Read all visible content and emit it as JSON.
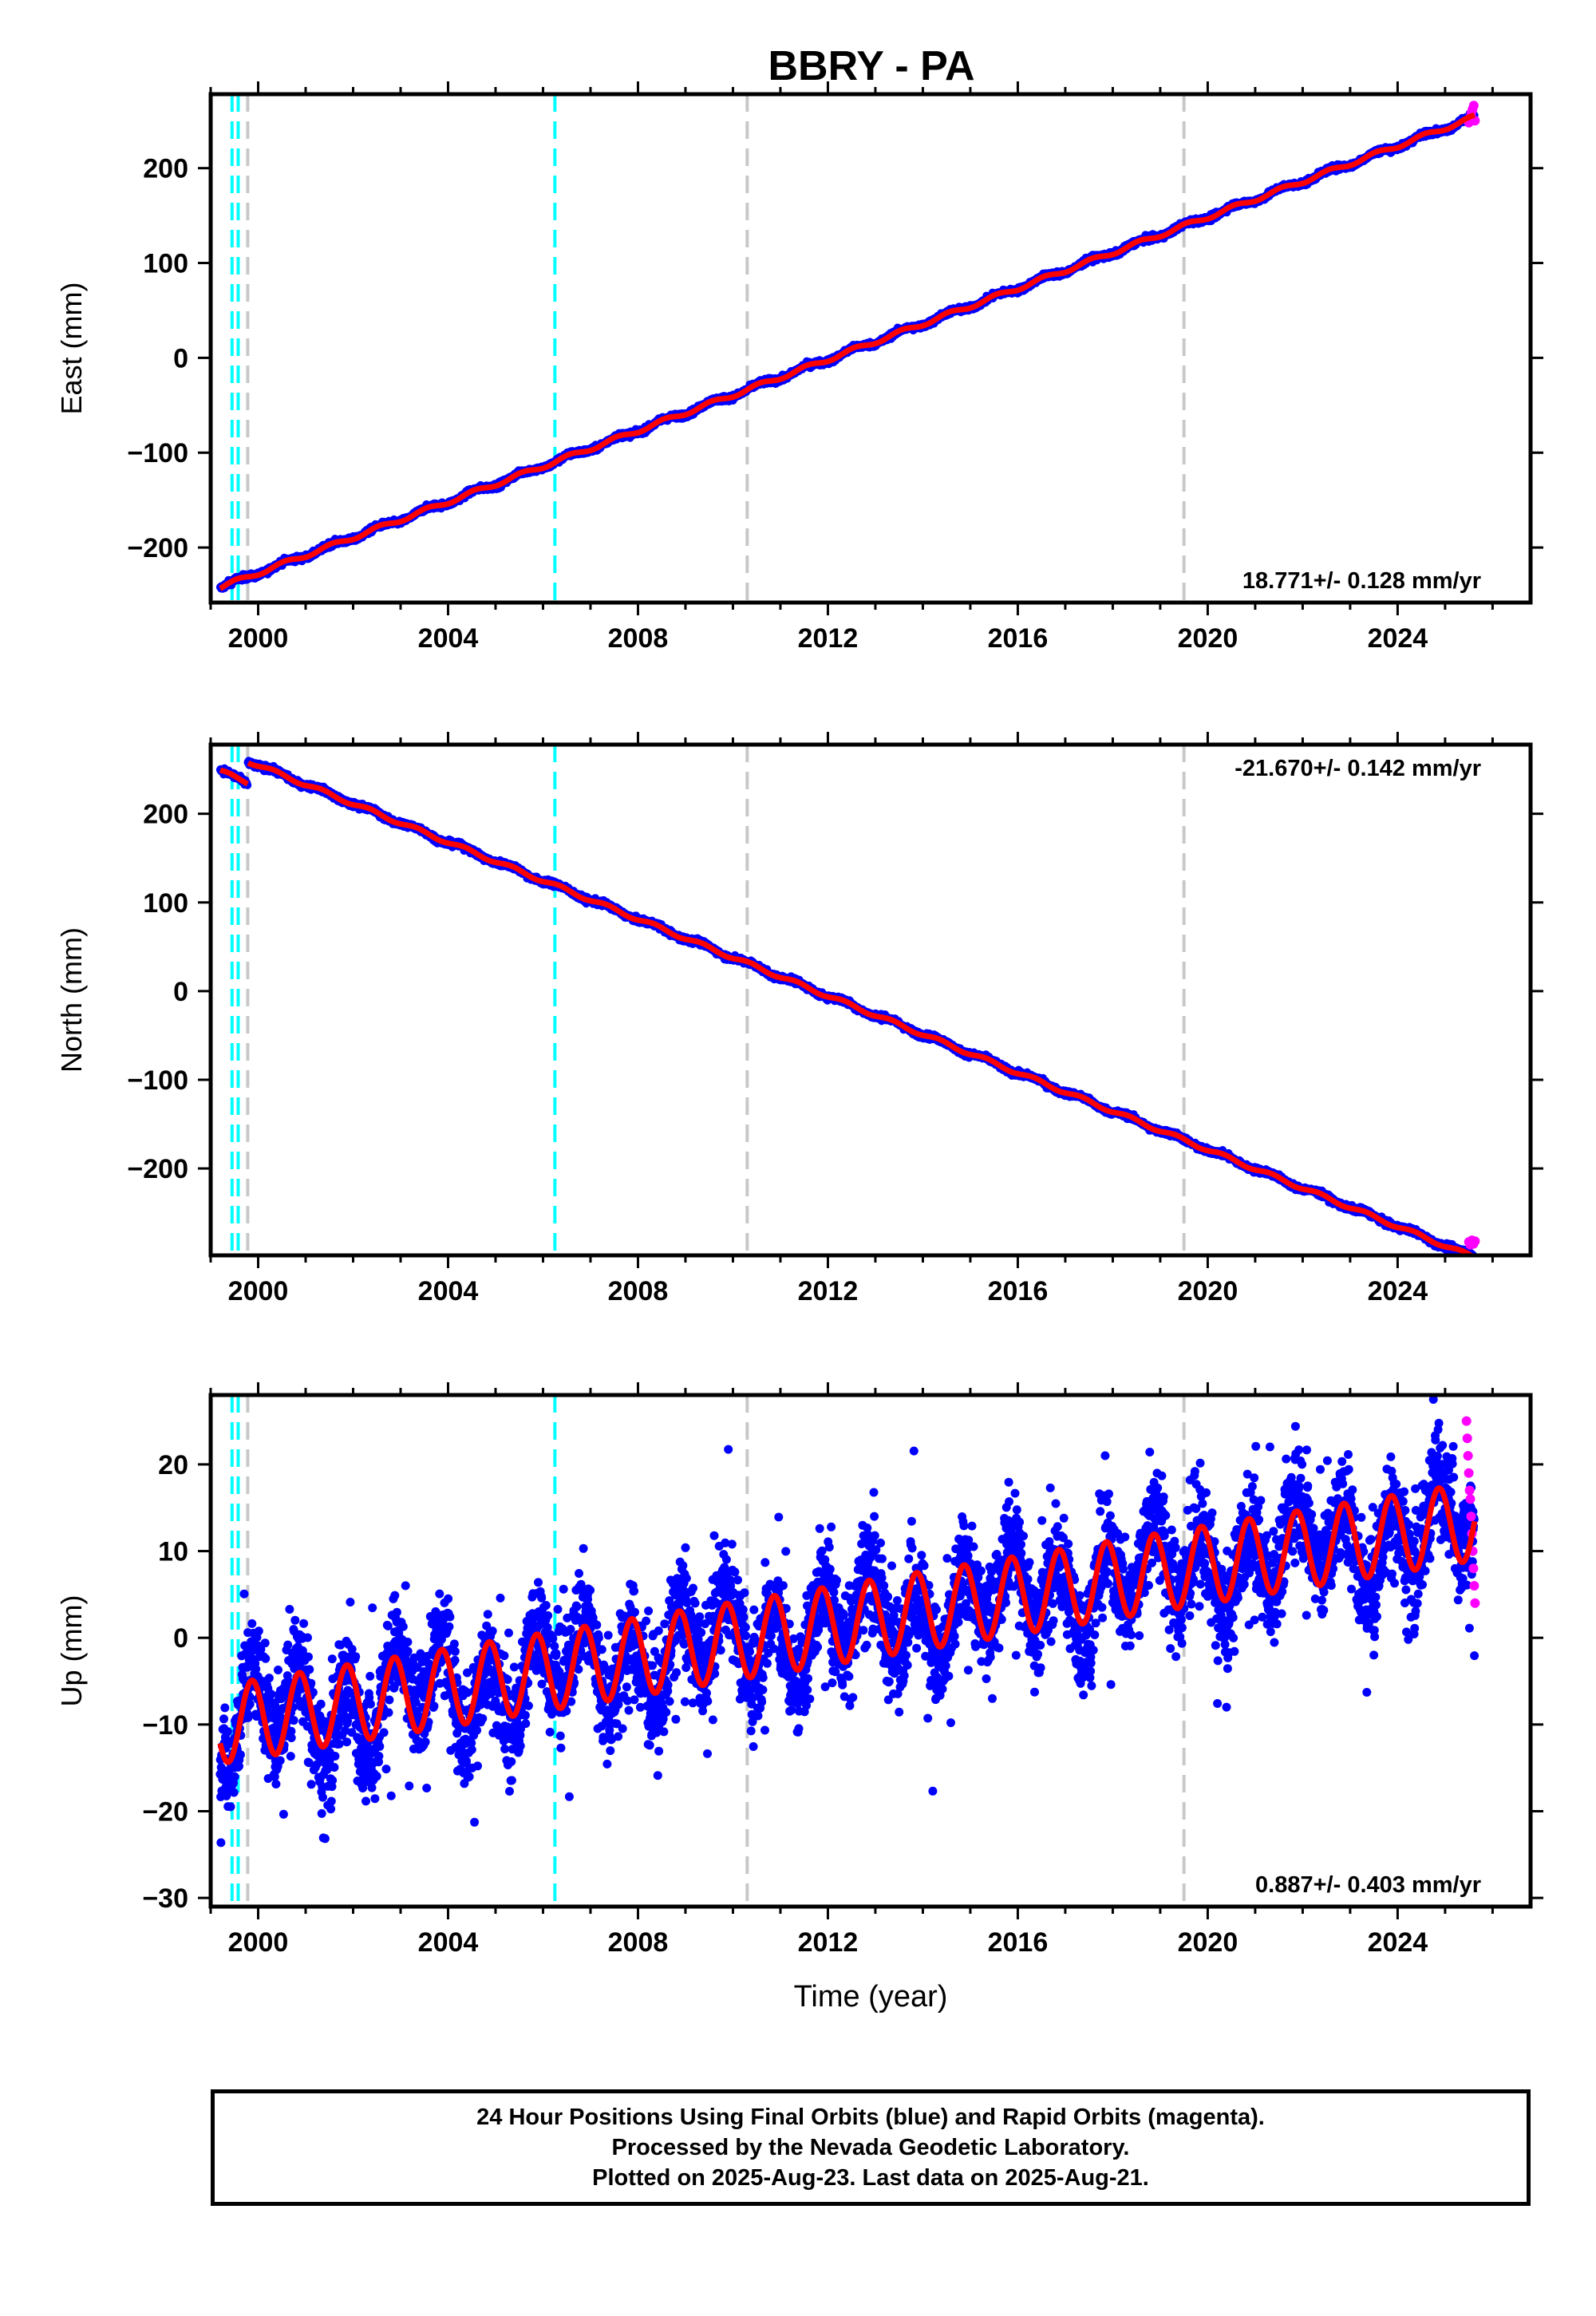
{
  "title": "BBRY - PA",
  "footer": {
    "line1": "24 Hour Positions Using Final Orbits (blue) and Rapid Orbits (magenta).",
    "line2": "Processed by the Nevada Geodetic Laboratory.",
    "line3": "Plotted on 2025-Aug-23. Last data on 2025-Aug-21."
  },
  "colors": {
    "final_orbits": "#0000ff",
    "rapid_orbits": "#ff00ff",
    "model_fit": "#ff0000",
    "equipment_change": "#00ffff",
    "earthquake": "#c8c8c8"
  },
  "chart_data": [
    {
      "type": "scatter",
      "component": "east",
      "ylabel": "East (mm)",
      "xlabel": "",
      "xlim": [
        1999.0,
        2026.8
      ],
      "ylim": [
        -258,
        278
      ],
      "xticks": [
        2000,
        2004,
        2008,
        2012,
        2016,
        2020,
        2024
      ],
      "xtick_labels": [
        "2000",
        "2004",
        "2008",
        "2012",
        "2016",
        "2020",
        "2024"
      ],
      "yticks": [
        -200,
        -100,
        0,
        100,
        200
      ],
      "ytick_labels": [
        "−200",
        "−100",
        "0",
        "100",
        "200"
      ],
      "rate_label": "18.771+/- 0.128 mm/yr",
      "rate_position": "bottom-right",
      "cyan_lines": [
        1999.45,
        1999.58,
        2006.25
      ],
      "gray_lines": [
        1999.78,
        2010.3,
        2019.5
      ],
      "model": {
        "start": 1999.2,
        "end": 2025.62,
        "y0": -242,
        "rate": 18.771,
        "annual_amp": 2.2,
        "phase": 0.3,
        "offsets": [],
        "noise": 2.2
      },
      "rapid": {
        "start": 2025.5,
        "end": 2025.63,
        "y": [
          248,
          253,
          258,
          262,
          266,
          250
        ]
      },
      "grid": false
    },
    {
      "type": "scatter",
      "component": "north",
      "ylabel": "North (mm)",
      "xlabel": "",
      "xlim": [
        1999.0,
        2026.8
      ],
      "ylim": [
        -298,
        278
      ],
      "xticks": [
        2000,
        2004,
        2008,
        2012,
        2016,
        2020,
        2024
      ],
      "xtick_labels": [
        "2000",
        "2004",
        "2008",
        "2012",
        "2016",
        "2020",
        "2024"
      ],
      "yticks": [
        -200,
        -100,
        0,
        100,
        200
      ],
      "ytick_labels": [
        "−200",
        "−100",
        "0",
        "100",
        "200"
      ],
      "rate_label": "-21.670+/- 0.142 mm/yr",
      "rate_position": "top-right",
      "cyan_lines": [
        1999.45,
        1999.58,
        2006.25
      ],
      "gray_lines": [
        1999.78,
        2010.3,
        2019.5
      ],
      "model": {
        "start": 1999.2,
        "end": 2025.62,
        "y0": 248,
        "rate": -21.67,
        "annual_amp": 2.0,
        "phase": 0.1,
        "offsets": [
          {
            "at": 1999.78,
            "dy": 24
          }
        ],
        "noise": 2.4
      },
      "rapid": {
        "start": 2025.5,
        "end": 2025.63,
        "y": [
          -283,
          -286,
          -281,
          -285,
          -282
        ]
      },
      "grid": false
    },
    {
      "type": "scatter",
      "component": "up",
      "ylabel": "Up (mm)",
      "xlabel": "Time (year)",
      "xlim": [
        1999.0,
        2026.8
      ],
      "ylim": [
        -31,
        28
      ],
      "xticks": [
        2000,
        2004,
        2008,
        2012,
        2016,
        2020,
        2024
      ],
      "xtick_labels": [
        "2000",
        "2004",
        "2008",
        "2012",
        "2016",
        "2020",
        "2024"
      ],
      "yticks": [
        -30,
        -20,
        -10,
        0,
        10,
        20
      ],
      "ytick_labels": [
        "−30",
        "−20",
        "−10",
        "0",
        "10",
        "20"
      ],
      "rate_label": "0.887+/- 0.403 mm/yr",
      "rate_position": "bottom-right",
      "cyan_lines": [
        1999.45,
        1999.58,
        2006.25
      ],
      "gray_lines": [
        1999.78,
        2010.3,
        2019.5
      ],
      "model": {
        "start": 1999.2,
        "end": 2025.62,
        "y0": -10,
        "rate": 0.887,
        "annual_amp": 4.5,
        "phase": 0.62,
        "offsets": [],
        "noise": 4.3
      },
      "rapid": {
        "start": 2025.45,
        "end": 2025.63,
        "y": [
          25,
          23,
          21,
          19,
          17,
          16,
          14,
          12,
          10,
          8,
          6,
          4
        ]
      },
      "grid": false
    }
  ]
}
